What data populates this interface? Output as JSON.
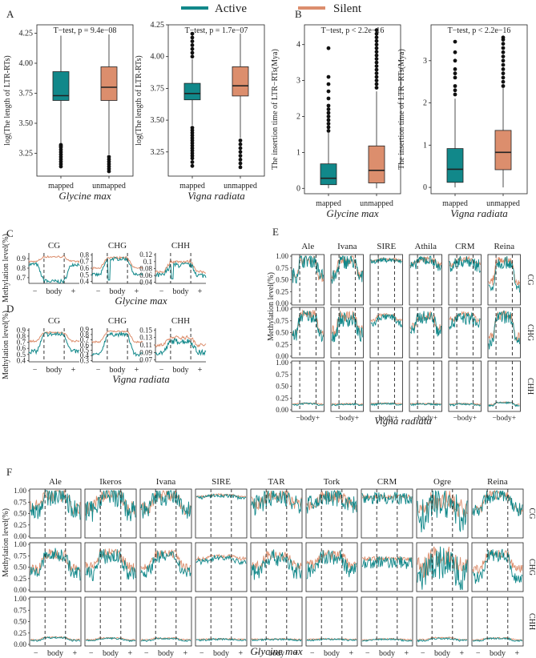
{
  "legend": {
    "items": [
      {
        "name": "Active",
        "color": "#11888a"
      },
      {
        "name": "Silent",
        "color": "#dc8e6d"
      }
    ]
  },
  "colors": {
    "active": "#11888a",
    "silent": "#dc8e6d"
  },
  "chart_data": [
    {
      "type": "box",
      "panel": "A",
      "species": "Glycine max",
      "ylabel": "log(The length of LTR-RTs)",
      "categories": [
        "mapped",
        "unmapped"
      ],
      "test": "T−test, p = 9.4e−08",
      "ylim": [
        3.06,
        4.32
      ],
      "ticks": [
        3.25,
        3.5,
        3.75,
        4.0,
        4.25
      ],
      "tick_labels": [
        "3.25",
        "3.50",
        "3.75",
        "4.00",
        "4.25"
      ],
      "boxes": [
        {
          "min": 3.33,
          "q1": 3.69,
          "median": 3.73,
          "q3": 3.93,
          "max": 4.23
        },
        {
          "min": 3.24,
          "q1": 3.69,
          "median": 3.8,
          "q3": 3.97,
          "max": 4.24
        }
      ],
      "outliers": [
        [
          3.32,
          3.31,
          3.3,
          3.28,
          3.26,
          3.24,
          3.22,
          3.2,
          3.18,
          3.16,
          3.14
        ],
        [
          3.22,
          3.2,
          3.18,
          3.16,
          3.14,
          3.12,
          3.1
        ]
      ]
    },
    {
      "type": "box",
      "panel": "A2",
      "species": "Vigna radiata",
      "ylabel": "log(The length of LTR-RTs)",
      "categories": [
        "mapped",
        "unmapped"
      ],
      "test": "T−test, p = 1.7e−07",
      "ylim": [
        3.06,
        4.25
      ],
      "ticks": [
        3.25,
        3.5,
        3.75,
        4.0,
        4.25
      ],
      "tick_labels": [
        "3.25",
        "3.50",
        "3.75",
        "4.00",
        "4.25"
      ],
      "boxes": [
        {
          "min": 3.46,
          "q1": 3.66,
          "median": 3.71,
          "q3": 3.79,
          "max": 3.98
        },
        {
          "min": 3.36,
          "q1": 3.69,
          "median": 3.77,
          "q3": 3.92,
          "max": 4.18
        }
      ],
      "outliers": [
        [
          4.18,
          4.15,
          4.12,
          4.09,
          4.06,
          4.03,
          4.0,
          3.44,
          3.42,
          3.4,
          3.38,
          3.36,
          3.34,
          3.32,
          3.3,
          3.28,
          3.26,
          3.24,
          3.22,
          3.2,
          3.17,
          3.14
        ],
        [
          3.34,
          3.31,
          3.28,
          3.25,
          3.22,
          3.19,
          3.16,
          3.13
        ]
      ]
    },
    {
      "type": "box",
      "panel": "B",
      "species": "Glycine max",
      "ylabel": "The insertion time of LTR−RTs(Mya)",
      "categories": [
        "mapped",
        "unmapped"
      ],
      "test": "T−test, p < 2.2e−16",
      "ylim": [
        -0.15,
        4.55
      ],
      "ticks": [
        0,
        1,
        2,
        3,
        4
      ],
      "tick_labels": [
        "0",
        "1",
        "2",
        "3",
        "4"
      ],
      "boxes": [
        {
          "min": 0,
          "q1": 0.1,
          "median": 0.28,
          "q3": 0.68,
          "max": 1.55
        },
        {
          "min": 0,
          "q1": 0.15,
          "median": 0.5,
          "q3": 1.18,
          "max": 2.7
        }
      ],
      "outliers": [
        [
          1.6,
          1.7,
          1.8,
          1.9,
          2.0,
          2.1,
          2.2,
          2.3,
          2.5,
          2.7,
          2.9,
          3.1,
          3.9
        ],
        [
          2.8,
          2.9,
          3.0,
          3.1,
          3.2,
          3.3,
          3.4,
          3.5,
          3.6,
          3.7,
          3.8,
          3.9,
          4.0,
          4.1,
          4.2,
          4.3,
          4.4
        ]
      ]
    },
    {
      "type": "box",
      "panel": "B2",
      "species": "Vigna radiata",
      "ylabel": "The insertion time of LTR−RTs(Mya)",
      "categories": [
        "mapped",
        "unmapped"
      ],
      "test": "T−test, p < 2.2e−16",
      "ylim": [
        -0.15,
        3.85
      ],
      "ticks": [
        0,
        1,
        2,
        3
      ],
      "tick_labels": [
        "0",
        "1",
        "2",
        "3"
      ],
      "boxes": [
        {
          "min": 0,
          "q1": 0.12,
          "median": 0.43,
          "q3": 0.92,
          "max": 2.1
        },
        {
          "min": 0,
          "q1": 0.42,
          "median": 0.83,
          "q3": 1.35,
          "max": 2.35
        }
      ],
      "outliers": [
        [
          2.2,
          2.3,
          2.4,
          2.6,
          2.7,
          2.8,
          3.0,
          3.2,
          3.45
        ],
        [
          2.4,
          2.5,
          2.6,
          2.7,
          2.8,
          2.9,
          3.0,
          3.1,
          3.2,
          3.3,
          3.4,
          3.5,
          3.55
        ]
      ]
    },
    {
      "type": "line",
      "panel": "C",
      "species": "Glycine max",
      "ylabel": "Methylation level(%)",
      "xticks": [
        "−",
        "body",
        "+"
      ],
      "subplots": [
        {
          "name": "CG",
          "ticks": [
            0.7,
            0.8,
            0.9
          ],
          "ylim": [
            0.64,
            0.96
          ]
        },
        {
          "name": "CHG",
          "ticks": [
            0.4,
            0.5,
            0.6,
            0.7,
            0.8
          ],
          "ylim": [
            0.37,
            0.83
          ]
        },
        {
          "name": "CHH",
          "ticks": [
            0.04,
            0.06,
            0.08,
            0.1,
            0.12
          ],
          "ylim": [
            0.037,
            0.125
          ]
        }
      ]
    },
    {
      "type": "line",
      "panel": "D",
      "species": "Vigna radiata",
      "ylabel": "Methylation level(%)",
      "xticks": [
        "−",
        "body",
        "+"
      ],
      "subplots": [
        {
          "name": "CG",
          "ticks": [
            0.4,
            0.5,
            0.6,
            0.7,
            0.8,
            0.9
          ],
          "ylim": [
            0.38,
            0.93
          ]
        },
        {
          "name": "CHG",
          "ticks": [
            0.3,
            0.4,
            0.5,
            0.6,
            0.7,
            0.8,
            0.9
          ],
          "ylim": [
            0.28,
            0.92
          ]
        },
        {
          "name": "CHH",
          "ticks": [
            0.07,
            0.09,
            0.11,
            0.13,
            0.15
          ],
          "ylim": [
            0.065,
            0.155
          ]
        }
      ]
    },
    {
      "type": "line",
      "panel": "E",
      "species": "Vigna radiata",
      "ylabel": "Methylation level(%)",
      "families": [
        "Ale",
        "Ivana",
        "SIRE",
        "Athila",
        "CRM",
        "Reina"
      ],
      "contexts": [
        "CG",
        "CHG",
        "CHH"
      ],
      "ticks": [
        0,
        0.25,
        0.5,
        0.75,
        1
      ],
      "tick_labels": [
        "0.00",
        "0.25",
        "0.50",
        "0.75",
        "1.00"
      ],
      "xtick": "−body+"
    },
    {
      "type": "line",
      "panel": "F",
      "species": "Glycine max",
      "ylabel": "Methylation level(%)",
      "families": [
        "Ale",
        "Ikeros",
        "Ivana",
        "SIRE",
        "TAR",
        "Tork",
        "CRM",
        "Ogre",
        "Reina"
      ],
      "contexts": [
        "CG",
        "CHG",
        "CHH"
      ],
      "ticks": [
        0,
        0.25,
        0.5,
        0.75,
        1
      ],
      "tick_labels": [
        "0.00",
        "0.25",
        "0.50",
        "0.75",
        "1.00"
      ],
      "xticks": [
        "−",
        "body",
        "+"
      ]
    }
  ]
}
